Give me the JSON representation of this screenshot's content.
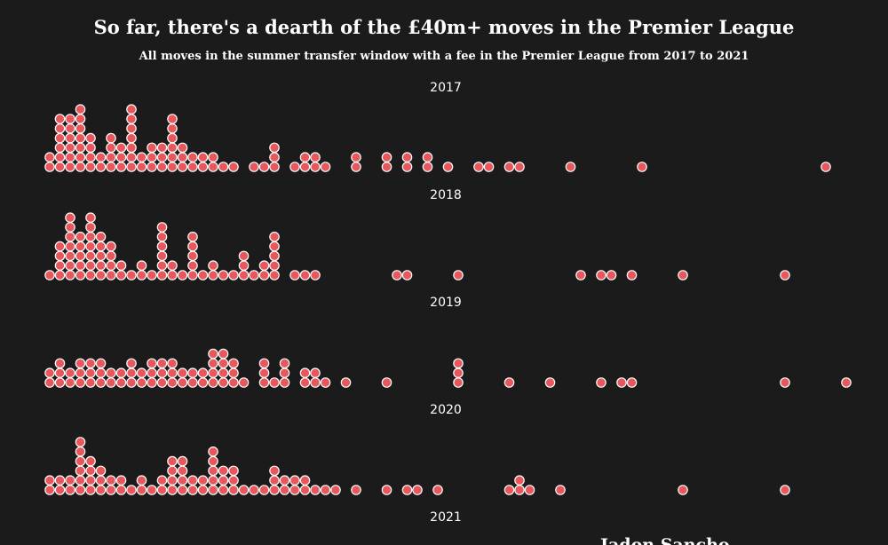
{
  "title": "So far, there's a dearth of the £40m+ moves in the Premier League",
  "subtitle": "All moves in the summer transfer window with a fee in the Premier League from 2017 to 2021",
  "bottom_overlay_text": "Jadon Sancho",
  "colors": {
    "background": "#1b1b1b",
    "dot": "#e8575c",
    "dot_stroke": "#ffffff",
    "text": "#ffffff"
  },
  "chart_data": {
    "type": "dot strip (beeswarm histogram)",
    "unit": "one dot per transfer; columns stack transfers of similar fee (fee axis not labeled)",
    "column_positions": [
      56,
      67.5,
      79,
      90.5,
      102,
      113.5,
      125,
      136.5,
      148,
      159.5,
      171,
      182.5,
      194,
      205.5,
      217,
      228.5,
      240,
      251.5,
      263,
      274.5,
      286,
      297.5,
      309,
      320.5,
      332,
      343.5,
      355,
      366.5,
      378,
      389.5,
      401,
      412.5,
      424,
      435.5,
      447,
      458.5,
      470,
      481.5,
      493,
      504.5,
      516,
      527.5,
      539,
      550.5,
      562,
      573.5,
      585,
      596.5,
      608,
      619.5,
      631,
      642.5,
      654,
      665.5,
      677,
      688.5,
      700,
      711.5,
      723,
      734.5,
      746,
      757.5,
      769,
      780.5,
      792,
      803.5,
      815,
      826.5,
      838,
      849.5,
      861,
      872.5,
      884,
      895.5,
      907,
      918.5,
      930,
      941.5,
      953
    ],
    "rows": [
      {
        "year": "2017",
        "counts": [
          2,
          6,
          6,
          7,
          4,
          2,
          4,
          3,
          7,
          2,
          3,
          3,
          6,
          3,
          2,
          2,
          2,
          1,
          1,
          0,
          1,
          1,
          3,
          0,
          1,
          2,
          2,
          1,
          0,
          0,
          2,
          0,
          0,
          2,
          0,
          2,
          0,
          2,
          0,
          1,
          0,
          0,
          1,
          1,
          0,
          1,
          1,
          0,
          0,
          0,
          0,
          1,
          0,
          0,
          0,
          0,
          0,
          0,
          1,
          0,
          0,
          0,
          0,
          0,
          0,
          0,
          0,
          0,
          0,
          0,
          0,
          0,
          0,
          0,
          0,
          0,
          1,
          0,
          0
        ]
      },
      {
        "year": "2018",
        "counts": [
          1,
          4,
          7,
          5,
          7,
          5,
          4,
          2,
          1,
          2,
          1,
          6,
          2,
          1,
          5,
          1,
          2,
          1,
          1,
          3,
          1,
          2,
          5,
          0,
          1,
          1,
          1,
          0,
          0,
          0,
          0,
          0,
          0,
          0,
          1,
          1,
          0,
          0,
          0,
          0,
          1,
          0,
          0,
          0,
          0,
          0,
          0,
          0,
          0,
          0,
          0,
          0,
          1,
          0,
          1,
          1,
          0,
          1,
          0,
          0,
          0,
          0,
          1,
          0,
          0,
          0,
          0,
          0,
          0,
          0,
          0,
          0,
          1,
          0,
          0,
          0,
          0,
          0,
          0
        ]
      },
      {
        "year": "2019",
        "counts": [
          2,
          3,
          2,
          3,
          3,
          3,
          2,
          2,
          3,
          2,
          3,
          3,
          3,
          2,
          2,
          2,
          4,
          4,
          3,
          1,
          0,
          3,
          1,
          3,
          0,
          2,
          2,
          1,
          0,
          1,
          0,
          0,
          0,
          1,
          0,
          0,
          0,
          0,
          0,
          0,
          3,
          0,
          0,
          0,
          0,
          1,
          0,
          0,
          0,
          1,
          0,
          0,
          0,
          0,
          1,
          0,
          1,
          1,
          0,
          0,
          0,
          0,
          0,
          0,
          0,
          0,
          0,
          0,
          0,
          0,
          0,
          0,
          1,
          0,
          0,
          0,
          0,
          0,
          1
        ]
      },
      {
        "year": "2020",
        "counts": [
          2,
          2,
          2,
          6,
          4,
          3,
          2,
          2,
          1,
          2,
          1,
          2,
          4,
          4,
          2,
          2,
          5,
          3,
          3,
          1,
          1,
          1,
          3,
          2,
          2,
          2,
          1,
          1,
          1,
          0,
          1,
          0,
          0,
          1,
          0,
          1,
          1,
          0,
          1,
          0,
          0,
          0,
          0,
          0,
          0,
          1,
          2,
          1,
          0,
          0,
          1,
          0,
          0,
          0,
          0,
          0,
          0,
          0,
          0,
          0,
          0,
          0,
          1,
          0,
          0,
          0,
          0,
          0,
          0,
          0,
          0,
          0,
          1,
          0,
          0,
          0,
          0,
          0,
          0
        ]
      }
    ]
  },
  "next_row_label": "2021"
}
